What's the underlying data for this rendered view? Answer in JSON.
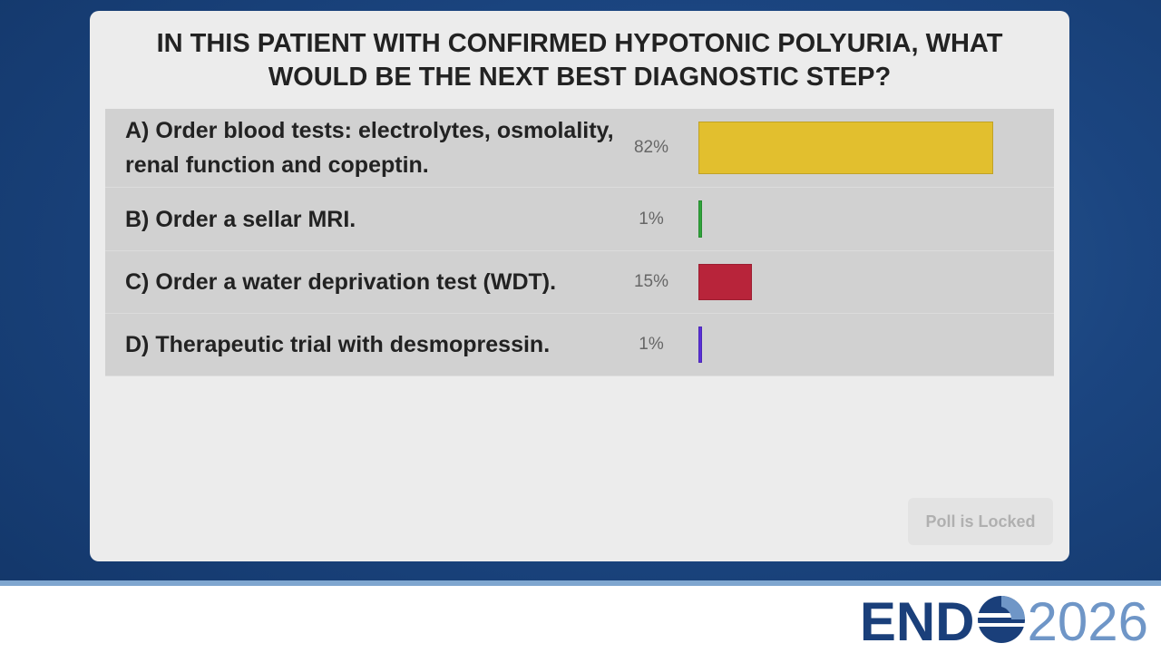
{
  "chart_data": {
    "type": "hbar",
    "title": "IN THIS PATIENT WITH CONFIRMED HYPOTONIC POLYURIA, WHAT WOULD BE THE NEXT BEST DIAGNOSTIC STEP?",
    "categories": [
      "A) Order blood tests: electrolytes, osmolality, renal function and copeptin.",
      "B) Order a sellar MRI.",
      "C) Order a water deprivation test (WDT).",
      "D) Therapeutic trial with desmopressin."
    ],
    "values": [
      82,
      1,
      15,
      1
    ],
    "value_labels": [
      "82%",
      "1%",
      "15%",
      "1%"
    ],
    "colors": [
      "#e2bf2e",
      "#2fa43a",
      "#b8243a",
      "#5a2fd8"
    ]
  },
  "button": "Poll is Locked",
  "logo": {
    "name": "END",
    "year": "2026"
  }
}
